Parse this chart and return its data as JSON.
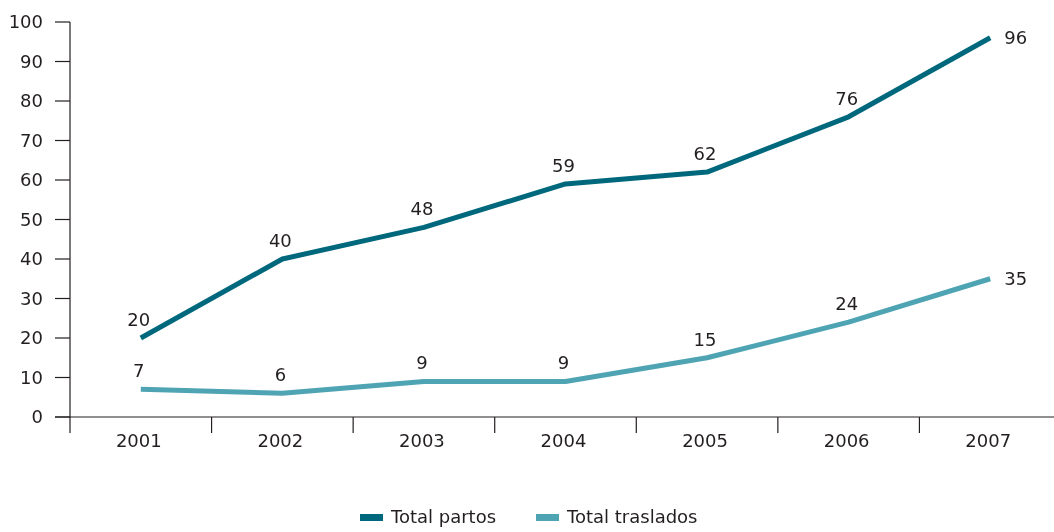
{
  "chart_data": {
    "type": "line",
    "categories": [
      "2001",
      "2002",
      "2003",
      "2004",
      "2005",
      "2006",
      "2007"
    ],
    "series": [
      {
        "name": "Total partos",
        "color": "#00687c",
        "values": [
          20,
          40,
          48,
          59,
          62,
          76,
          96
        ]
      },
      {
        "name": "Total traslados",
        "color": "#4fa4b4",
        "values": [
          7,
          6,
          9,
          9,
          15,
          24,
          35
        ]
      }
    ],
    "ylim": [
      0,
      100
    ],
    "yticks": [
      0,
      10,
      20,
      30,
      40,
      50,
      60,
      70,
      80,
      90,
      100
    ],
    "data_labels": true,
    "legend": "bottom",
    "grid": false,
    "marker": "none",
    "line_style": "solid"
  }
}
